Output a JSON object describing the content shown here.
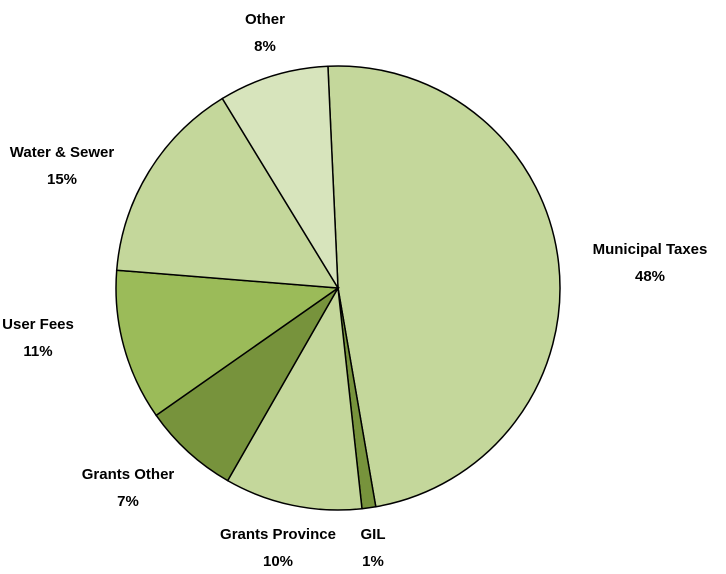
{
  "chart_data": {
    "type": "pie",
    "categories": [
      "Municipal Taxes",
      "GIL",
      "Grants Province",
      "Grants Other",
      "User Fees",
      "Water & Sewer",
      "Other"
    ],
    "values": [
      48,
      1,
      10,
      7,
      11,
      15,
      8
    ],
    "value_labels": [
      "48%",
      "1%",
      "10%",
      "7%",
      "11%",
      "15%",
      "8%"
    ],
    "colors": [
      "#c4d79b",
      "#77933c",
      "#c4d79b",
      "#77933c",
      "#9bbb59",
      "#c4d79b",
      "#d7e4bc"
    ]
  }
}
